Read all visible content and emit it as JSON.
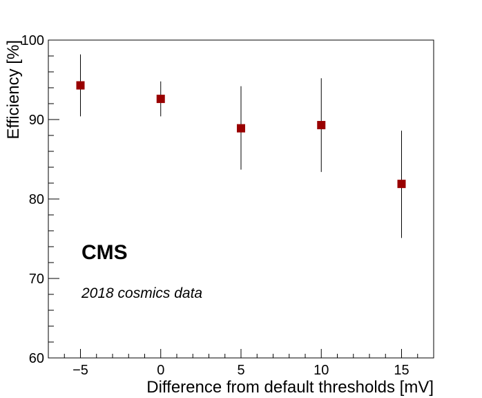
{
  "chart_data": {
    "type": "scatter",
    "xlabel": "Difference from default thresholds [mV]",
    "ylabel": "Efficiency [%]",
    "xlim": [
      -7,
      17
    ],
    "ylim": [
      60,
      100
    ],
    "x_ticks": [
      -5,
      0,
      5,
      10,
      15
    ],
    "x_tick_labels": [
      "−5",
      "0",
      "5",
      "10",
      "15"
    ],
    "y_ticks": [
      60,
      70,
      80,
      90,
      100
    ],
    "y_tick_labels": [
      "60",
      "70",
      "80",
      "90",
      "100"
    ],
    "grid": false,
    "marker": "square",
    "marker_color": "#990000",
    "error_bar_color": "#000000",
    "points": [
      {
        "x": -5,
        "y": 94.3,
        "y_low": 90.4,
        "y_high": 98.2
      },
      {
        "x": 0,
        "y": 92.6,
        "y_low": 90.4,
        "y_high": 94.8
      },
      {
        "x": 5,
        "y": 88.9,
        "y_low": 83.7,
        "y_high": 94.2
      },
      {
        "x": 10,
        "y": 89.3,
        "y_low": 83.4,
        "y_high": 95.2
      },
      {
        "x": 15,
        "y": 81.9,
        "y_low": 75.1,
        "y_high": 88.6
      }
    ],
    "annotations": [
      {
        "text": "CMS",
        "style": "bold"
      },
      {
        "text": "2018 cosmics data",
        "style": "italic"
      }
    ]
  }
}
